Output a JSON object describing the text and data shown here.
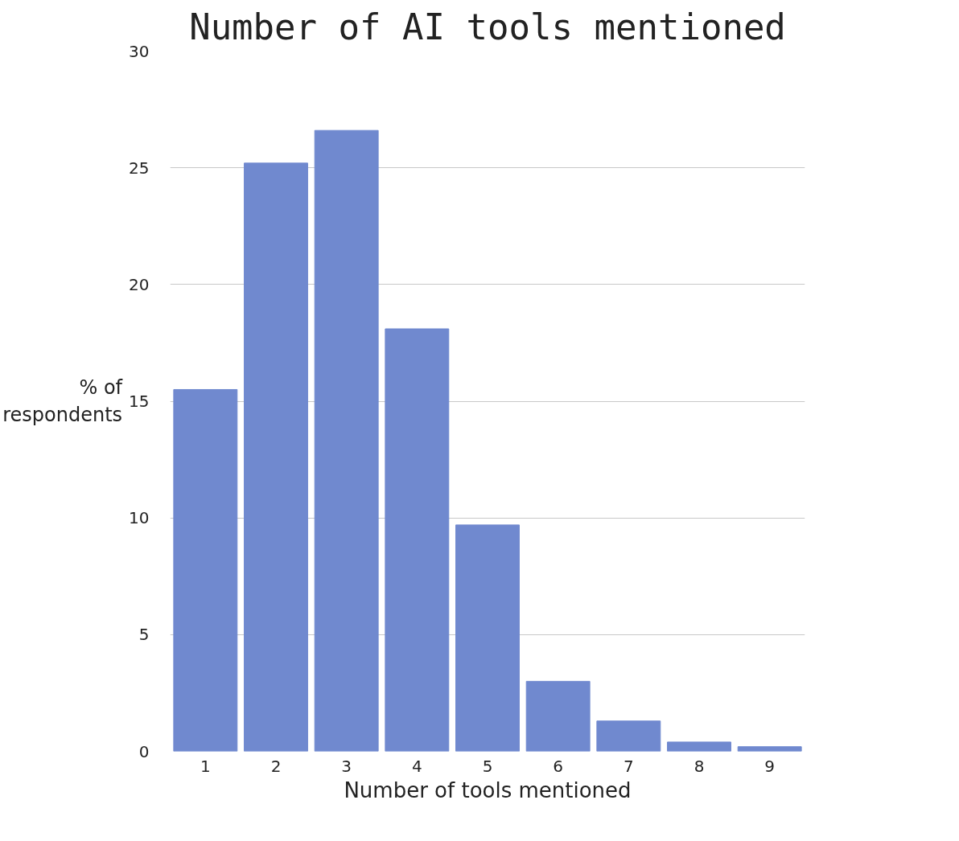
{
  "chart_data": {
    "type": "bar",
    "title": "Number of AI tools mentioned",
    "xlabel": "Number of tools mentioned",
    "ylabel": "% of\nrespondents",
    "categories": [
      "1",
      "2",
      "3",
      "4",
      "5",
      "6",
      "7",
      "8",
      "9"
    ],
    "values": [
      15.5,
      25.2,
      26.6,
      18.1,
      9.7,
      3.0,
      1.3,
      0.4,
      0.2
    ],
    "color": "#7089cf",
    "ylim": [
      0,
      30
    ],
    "yticks": [
      0,
      5,
      10,
      15,
      20,
      25,
      30
    ],
    "grid": "y"
  }
}
